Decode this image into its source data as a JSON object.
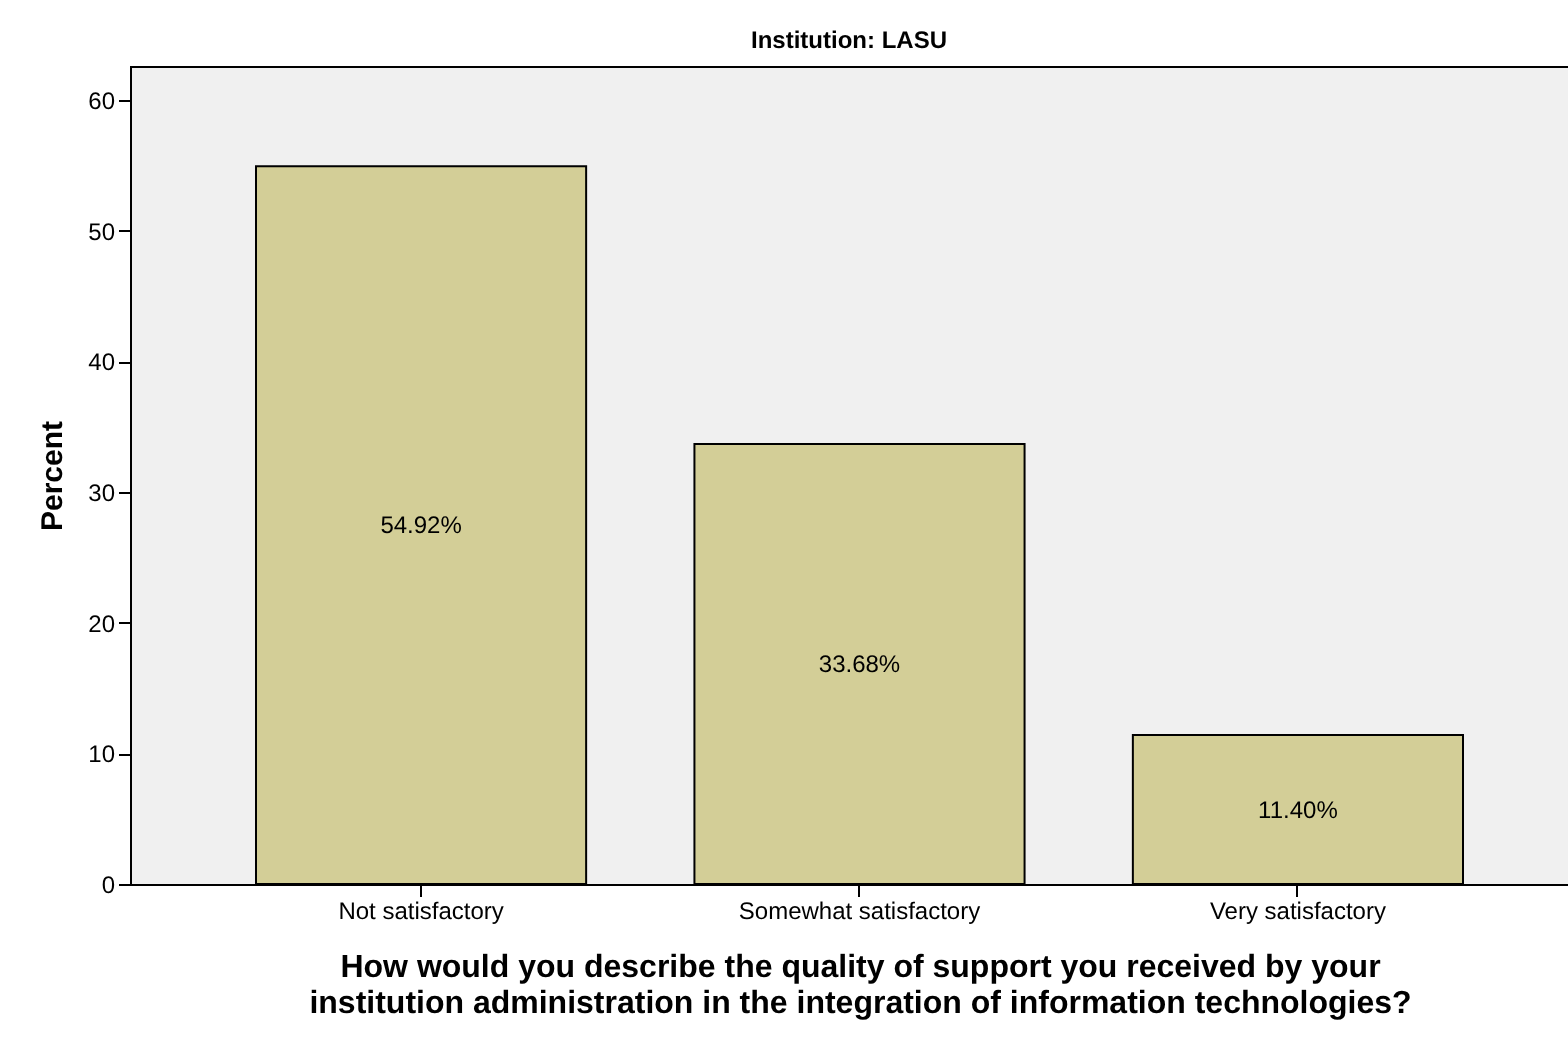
{
  "chart_data": {
    "type": "bar",
    "title": "Institution: LASU",
    "xlabel": "How would you describe the quality of support you received by your institution administration in the integration of information technologies?",
    "ylabel": "Percent",
    "categories": [
      "Not satisfactory",
      "Somewhat satisfactory",
      "Very satisfactory"
    ],
    "values": [
      54.92,
      33.68,
      11.4
    ],
    "color": "#d3ce97",
    "value_labels": [
      "54.92%",
      "33.68%",
      "11.40%"
    ],
    "ylim": [
      0,
      62.6
    ],
    "yticks": [
      0,
      10,
      20,
      30,
      40,
      50,
      60
    ]
  }
}
